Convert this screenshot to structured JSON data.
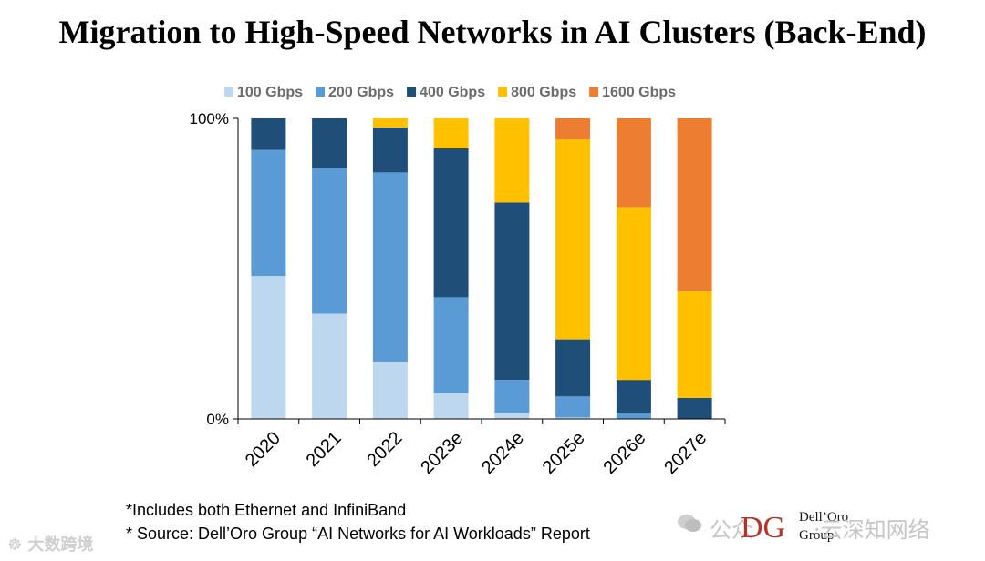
{
  "title": "Migration to High-Speed Networks in AI Clusters (Back-End)",
  "chart_data": {
    "type": "bar",
    "stacked": true,
    "percent_stacked": true,
    "categories": [
      "2020",
      "2021",
      "2022",
      "2023e",
      "2024e",
      "2025e",
      "2026e",
      "2027e"
    ],
    "series": [
      {
        "name": "100 Gbps",
        "color": "#bdd7ee",
        "values": [
          47.5,
          35,
          19,
          8.5,
          2,
          0.5,
          0,
          0
        ]
      },
      {
        "name": "200 Gbps",
        "color": "#5b9bd5",
        "values": [
          42,
          48.5,
          63,
          32,
          11,
          7,
          2,
          0
        ]
      },
      {
        "name": "400 Gbps",
        "color": "#1f4e79",
        "values": [
          10.5,
          16.5,
          15,
          49.5,
          59,
          19,
          11,
          7
        ]
      },
      {
        "name": "800 Gbps",
        "color": "#ffc000",
        "values": [
          0,
          0,
          3,
          10,
          28,
          66.5,
          57.5,
          35.5
        ]
      },
      {
        "name": "1600 Gbps",
        "color": "#ed7d31",
        "values": [
          0,
          0,
          0,
          0,
          0,
          7,
          29.5,
          57.5
        ]
      }
    ],
    "yticks": [
      "0%",
      "100%"
    ],
    "ylim": [
      0,
      100
    ],
    "legend_position": "top"
  },
  "footnotes": [
    "*Includes both Ethernet and InfiniBand",
    "* Source: Dell’Oro Group “AI Networks for AI Workloads” Report"
  ],
  "logo": {
    "line1": "Dell’Oro",
    "line2": "Group",
    "mark": "DG"
  },
  "watermarks": {
    "left": "大数跨境",
    "right_a": "公众",
    "right_b": "·云深知网络"
  }
}
